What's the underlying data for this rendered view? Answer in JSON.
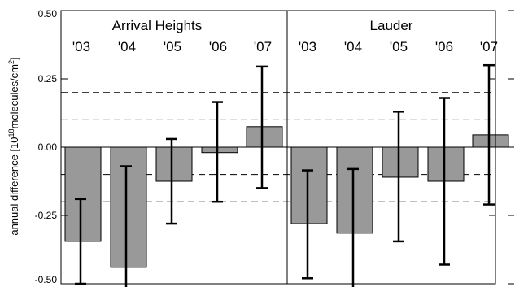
{
  "chart_data": {
    "type": "bar",
    "ylabel_pre": "annual difference [10",
    "ylabel_exp1": "18",
    "ylabel_mid": "molecules/cm",
    "ylabel_exp2": "2",
    "ylabel_post": "]",
    "ylim": [
      -0.5,
      0.5
    ],
    "yticks": [
      "0.50",
      "0.25",
      "0.00",
      "-0.25",
      "-0.50"
    ],
    "ytick_values": [
      0.5,
      0.25,
      0.0,
      -0.25,
      -0.5
    ],
    "reference_lines": [
      0.2,
      0.1,
      -0.1,
      -0.2
    ],
    "colors": {
      "bar": "#999999",
      "axis": "#000000"
    },
    "panels": [
      {
        "name": "Arrival Heights",
        "categories": [
          "'03",
          "'04",
          "'05",
          "'06",
          "'07"
        ],
        "values": [
          -0.345,
          -0.44,
          -0.125,
          -0.02,
          0.075
        ],
        "error_low": [
          -0.5,
          -0.52,
          -0.28,
          -0.2,
          -0.15
        ],
        "error_high": [
          -0.19,
          -0.07,
          0.03,
          0.165,
          0.295
        ]
      },
      {
        "name": "Lauder",
        "categories": [
          "'03",
          "'04",
          "'05",
          "'06",
          "'07"
        ],
        "values": [
          -0.28,
          -0.315,
          -0.11,
          -0.125,
          0.045
        ],
        "error_low": [
          -0.48,
          -0.52,
          -0.345,
          -0.43,
          -0.21
        ],
        "error_high": [
          -0.085,
          -0.08,
          0.13,
          0.18,
          0.3
        ]
      }
    ]
  }
}
